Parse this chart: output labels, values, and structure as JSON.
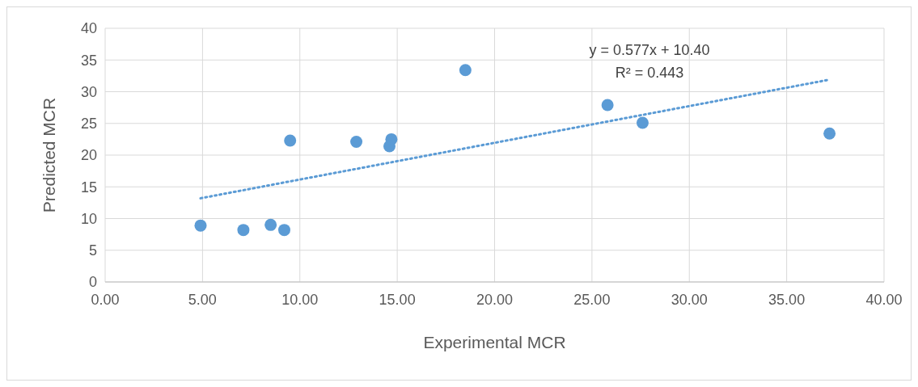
{
  "chart_data": {
    "type": "scatter",
    "xlabel": "Experimental MCR",
    "ylabel": "Predicted MCR",
    "series": [
      {
        "color": "#5b9bd5",
        "marker": "circle",
        "x": [
          4.9,
          7.1,
          8.5,
          9.2,
          9.5,
          12.9,
          14.6,
          14.7,
          18.5,
          25.8,
          27.6,
          37.2
        ],
        "values": [
          8.9,
          8.2,
          9.0,
          8.2,
          22.3,
          22.1,
          21.4,
          22.5,
          33.4,
          27.9,
          25.1,
          23.4
        ]
      },
      {
        "type": "line",
        "color": "#5b9bd5",
        "line_style": "dotted",
        "marker": "none",
        "x": [
          4.9,
          37.2
        ],
        "values": [
          13.2,
          31.9
        ]
      }
    ],
    "annotations": [
      "y = 0.577x + 10.40",
      "R² = 0.443"
    ],
    "xlim": [
      0,
      40
    ],
    "xticks": [
      {
        "value": 0,
        "label": "0.00"
      },
      {
        "value": 5,
        "label": "5.00"
      },
      {
        "value": 10,
        "label": "10.00"
      },
      {
        "value": 15,
        "label": "15.00"
      },
      {
        "value": 20,
        "label": "20.00"
      },
      {
        "value": 25,
        "label": "25.00"
      },
      {
        "value": 30,
        "label": "30.00"
      },
      {
        "value": 35,
        "label": "35.00"
      },
      {
        "value": 40,
        "label": "40.00"
      }
    ],
    "ylim": [
      0,
      40
    ],
    "yticks": [
      0,
      5,
      10,
      15,
      20,
      25,
      30,
      35,
      40
    ],
    "grid": true
  }
}
